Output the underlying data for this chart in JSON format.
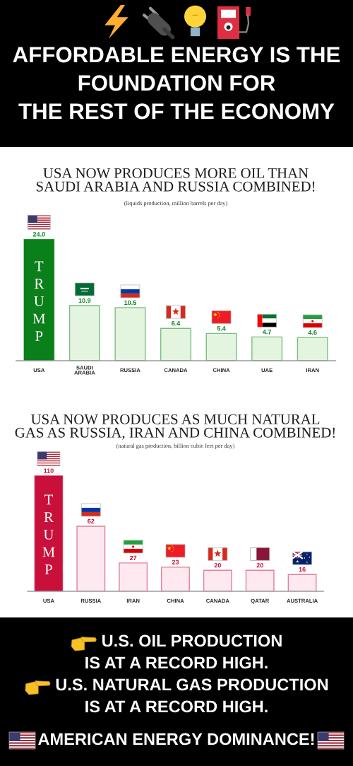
{
  "chart_data": [
    {
      "type": "bar",
      "title": "USA NOW PRODUCES MORE OIL THAN\nSAUDI ARABIA AND RUSSIA COMBINED!",
      "subtitle": "(liquids production, million barrels per day)",
      "categories": [
        "USA",
        "SAUDI\nARABIA",
        "RUSSIA",
        "CANADA",
        "CHINA",
        "UAE",
        "IRAN"
      ],
      "values": [
        24.0,
        10.9,
        10.5,
        6.4,
        5.4,
        4.7,
        4.6
      ],
      "colors": [
        "#0a7f1a",
        "#e3f4df",
        "#e3f4df",
        "#e3f4df",
        "#e3f4df",
        "#e3f4df",
        "#e3f4df"
      ],
      "value_labels": [
        "24.0",
        "10.9",
        "10.5",
        "6.4",
        "5.4",
        "4.7",
        "4.6"
      ],
      "annotations": [
        "T\nR\nU\nM\nP",
        "AFFORDABLE ENERGY IS THE\nFOUNDATION FOR\nTHE REST OF THE ECONOMY"
      ]
    },
    {
      "type": "bar",
      "title": "USA NOW PRODUCES AS MUCH NATURAL\nGAS AS RUSSIA, IRAN AND CHINA COMBINED!",
      "subtitle": "(natural gas production, billion cubic feet per day)",
      "categories": [
        "USA",
        "RUSSIA",
        "IRAN",
        "CHINA",
        "CANADA",
        "QATAR",
        "AUSTRALIA"
      ],
      "values": [
        110,
        62,
        27,
        23,
        20,
        20,
        16
      ],
      "colors": [
        "#c8103a",
        "#fde9ef",
        "#fde9ef",
        "#fde9ef",
        "#fde9ef",
        "#fde9ef",
        "#fde9ef"
      ],
      "value_labels": [
        "110",
        "62",
        "27",
        "23",
        "20",
        "20",
        "16"
      ],
      "annotations": [
        "T\nR\nU\nM\nP",
        "U.S. OIL PRODUCTION\nIS AT A RECORD HIGH.\nU.S. NATURAL GAS PRODUCTION\nIS AT A RECORD HIGH.\nAMERICAN ENERGY DOMINANCE!"
      ]
    }
  ]
}
